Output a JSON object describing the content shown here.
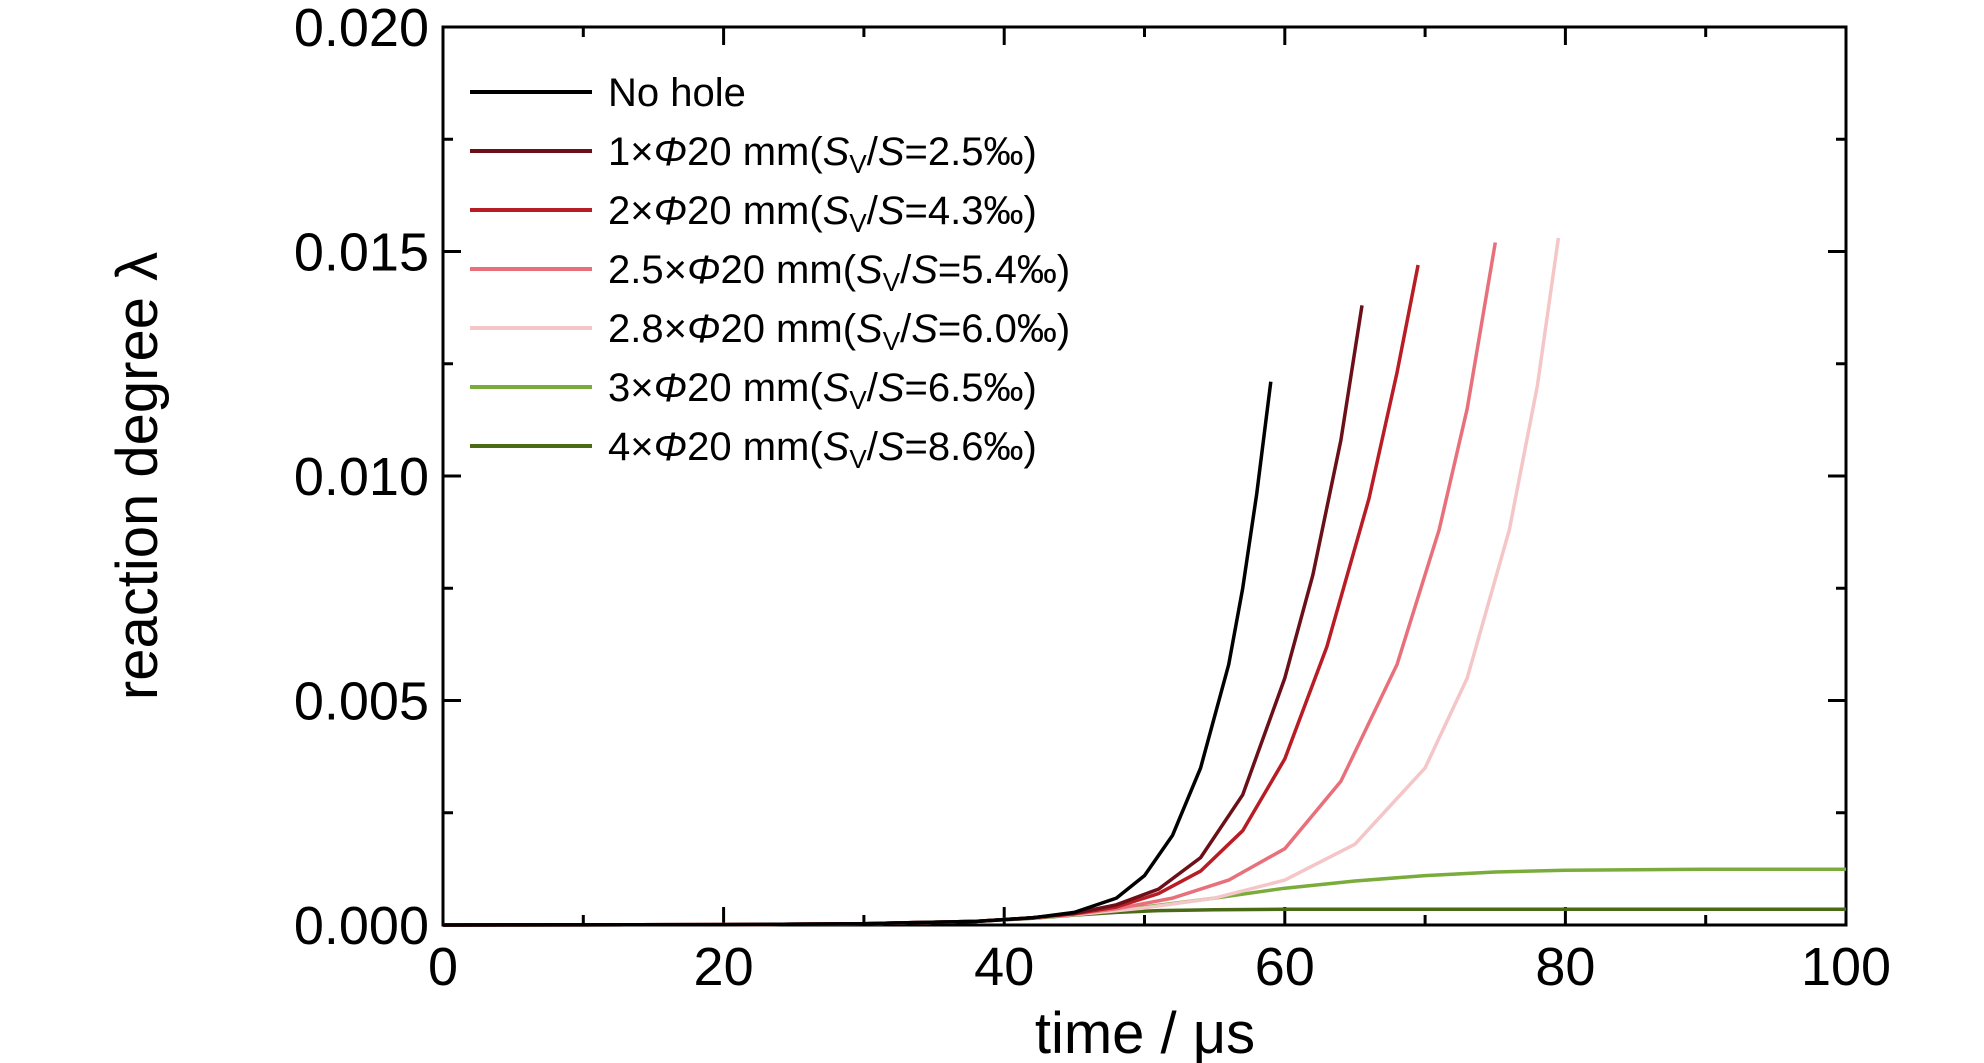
{
  "chart_data": {
    "type": "line",
    "xlabel": "time / μs",
    "ylabel": "reaction degree λ",
    "xlim": [
      0,
      100
    ],
    "ylim": [
      0,
      0.02
    ],
    "xticks": [
      "0",
      "20",
      "40",
      "60",
      "80",
      "100"
    ],
    "yticks": [
      "0.000",
      "0.005",
      "0.010",
      "0.015",
      "0.020"
    ],
    "legend_position": "top-left",
    "grid": false,
    "series": [
      {
        "name": "No hole",
        "color": "#000000",
        "points": [
          [
            0,
            0
          ],
          [
            20,
            1e-05
          ],
          [
            30,
            3e-05
          ],
          [
            38,
            8e-05
          ],
          [
            42,
            0.00016
          ],
          [
            45,
            0.00028
          ],
          [
            48,
            0.0006
          ],
          [
            50,
            0.0011
          ],
          [
            52,
            0.002
          ],
          [
            54,
            0.0035
          ],
          [
            56,
            0.0058
          ],
          [
            57,
            0.0075
          ],
          [
            58,
            0.0096
          ],
          [
            59,
            0.0121
          ]
        ]
      },
      {
        "name": "1×Φ20 mm(Sv/S=2.5‰)",
        "legend": [
          "1×",
          "Φ",
          "20 mm(",
          "S",
          "V",
          "/",
          "S",
          "=2.5‰)"
        ],
        "color": "#6b1018",
        "points": [
          [
            0,
            0
          ],
          [
            20,
            1e-05
          ],
          [
            30,
            3e-05
          ],
          [
            38,
            8e-05
          ],
          [
            42,
            0.00016
          ],
          [
            45,
            0.00026
          ],
          [
            48,
            0.00045
          ],
          [
            51,
            0.0008
          ],
          [
            54,
            0.0015
          ],
          [
            57,
            0.0029
          ],
          [
            60,
            0.0055
          ],
          [
            62,
            0.0078
          ],
          [
            64,
            0.0108
          ],
          [
            65.5,
            0.0138
          ]
        ]
      },
      {
        "name": "2×Φ20 mm(Sv/S=4.3‰)",
        "legend": [
          "2×",
          "Φ",
          "20 mm(",
          "S",
          "V",
          "/",
          "S",
          "=4.3‰)"
        ],
        "color": "#b81c24",
        "points": [
          [
            0,
            0
          ],
          [
            20,
            1e-05
          ],
          [
            30,
            3e-05
          ],
          [
            38,
            8e-05
          ],
          [
            42,
            0.00016
          ],
          [
            45,
            0.00025
          ],
          [
            48,
            0.0004
          ],
          [
            51,
            0.0007
          ],
          [
            54,
            0.0012
          ],
          [
            57,
            0.0021
          ],
          [
            60,
            0.0037
          ],
          [
            63,
            0.0062
          ],
          [
            66,
            0.0095
          ],
          [
            68,
            0.0123
          ],
          [
            69.5,
            0.0147
          ]
        ]
      },
      {
        "name": "2.5×Φ20 mm(Sv/S=5.4‰)",
        "legend": [
          "2.5×",
          "Φ",
          "20 mm(",
          "S",
          "V",
          "/",
          "S",
          "=5.4‰)"
        ],
        "color": "#e8707a",
        "points": [
          [
            0,
            0
          ],
          [
            20,
            1e-05
          ],
          [
            30,
            3e-05
          ],
          [
            38,
            8e-05
          ],
          [
            42,
            0.00016
          ],
          [
            45,
            0.00024
          ],
          [
            48,
            0.00036
          ],
          [
            52,
            0.0006
          ],
          [
            56,
            0.001
          ],
          [
            60,
            0.0017
          ],
          [
            64,
            0.0032
          ],
          [
            68,
            0.0058
          ],
          [
            71,
            0.0088
          ],
          [
            73,
            0.0115
          ],
          [
            75,
            0.0152
          ]
        ]
      },
      {
        "name": "2.8×Φ20 mm(Sv/S=6.0‰)",
        "legend": [
          "2.8×",
          "Φ",
          "20 mm(",
          "S",
          "V",
          "/",
          "S",
          "=6.0‰)"
        ],
        "color": "#f5c6c8",
        "points": [
          [
            0,
            0
          ],
          [
            20,
            1e-05
          ],
          [
            30,
            3e-05
          ],
          [
            38,
            8e-05
          ],
          [
            42,
            0.00016
          ],
          [
            45,
            0.00023
          ],
          [
            50,
            0.00038
          ],
          [
            55,
            0.0006
          ],
          [
            60,
            0.001
          ],
          [
            65,
            0.0018
          ],
          [
            70,
            0.0035
          ],
          [
            73,
            0.0055
          ],
          [
            76,
            0.0088
          ],
          [
            78,
            0.012
          ],
          [
            79.5,
            0.0153
          ]
        ]
      },
      {
        "name": "3×Φ20 mm(Sv/S=6.5‰)",
        "legend": [
          "3×",
          "Φ",
          "20 mm(",
          "S",
          "V",
          "/",
          "S",
          "=6.5‰)"
        ],
        "color": "#7aac3c",
        "points": [
          [
            0,
            0
          ],
          [
            20,
            1e-05
          ],
          [
            30,
            3e-05
          ],
          [
            38,
            8e-05
          ],
          [
            42,
            0.00016
          ],
          [
            45,
            0.00023
          ],
          [
            50,
            0.0004
          ],
          [
            55,
            0.0006
          ],
          [
            60,
            0.00082
          ],
          [
            65,
            0.00098
          ],
          [
            70,
            0.0011
          ],
          [
            75,
            0.00118
          ],
          [
            80,
            0.00122
          ],
          [
            90,
            0.00124
          ],
          [
            100,
            0.00124
          ]
        ]
      },
      {
        "name": "4×Φ20 mm(Sv/S=8.6‰)",
        "legend": [
          "4×",
          "Φ",
          "20 mm(",
          "S",
          "V",
          "/",
          "S",
          "=8.6‰)"
        ],
        "color": "#4a6a16",
        "points": [
          [
            0,
            0
          ],
          [
            20,
            1e-05
          ],
          [
            30,
            3e-05
          ],
          [
            38,
            8e-05
          ],
          [
            42,
            0.00015
          ],
          [
            45,
            0.00022
          ],
          [
            48,
            0.00028
          ],
          [
            51,
            0.00032
          ],
          [
            55,
            0.00034
          ],
          [
            60,
            0.00035
          ],
          [
            70,
            0.00035
          ],
          [
            100,
            0.00035
          ]
        ]
      }
    ]
  }
}
